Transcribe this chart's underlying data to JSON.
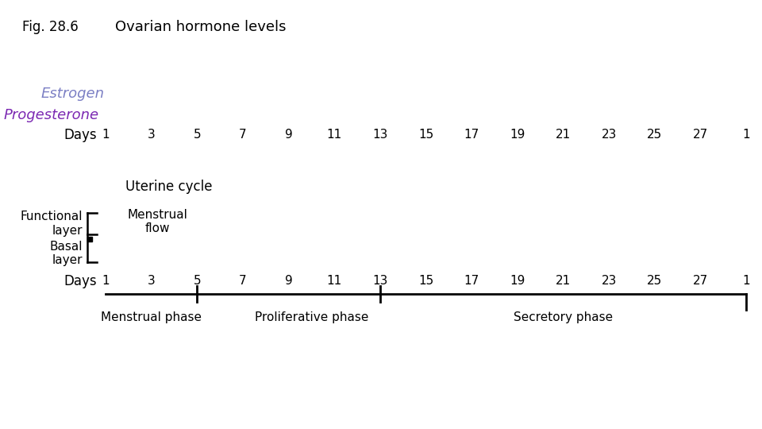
{
  "fig_label": "Fig. 28.6",
  "title": "Ovarian hormone levels",
  "estrogen_label": "Estrogen",
  "estrogen_color": "#7B7FC4",
  "progesterone_label": "Progesterone",
  "progesterone_color": "#7B28B2",
  "days_label": "Days",
  "days_ticks": [
    1,
    3,
    5,
    7,
    9,
    11,
    13,
    15,
    17,
    19,
    21,
    23,
    25,
    27,
    1
  ],
  "uterine_cycle_label": "Uterine cycle",
  "menstrual_flow_label": "Menstrual\nflow",
  "functional_layer_label": "Functional\nlayer",
  "basal_layer_label": "Basal\nlayer",
  "phases": [
    {
      "label": "Menstrual phase"
    },
    {
      "label": "Proliferative phase"
    },
    {
      "label": "Secretory phase"
    }
  ],
  "background_color": "#ffffff",
  "text_color": "#000000"
}
